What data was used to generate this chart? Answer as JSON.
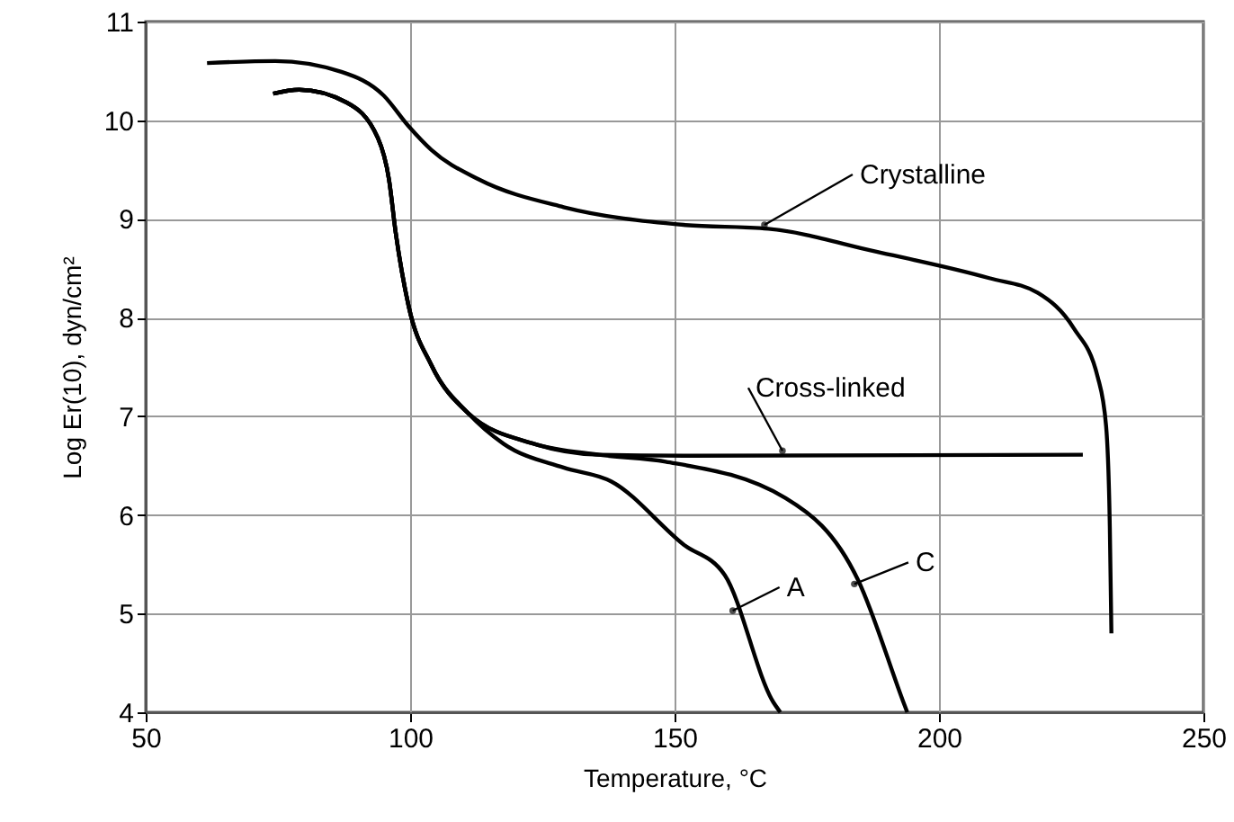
{
  "chart_data": {
    "type": "line",
    "xlabel": "Temperature, °C",
    "ylabel": "Log Er(10), dyn/cm²",
    "xlim": [
      50,
      250
    ],
    "xticks": [
      50,
      100,
      150,
      200,
      250
    ],
    "ylim": [
      4,
      11
    ],
    "yticks": [
      4,
      5,
      6,
      7,
      8,
      9,
      10,
      11
    ],
    "grid": true,
    "marker": "none",
    "line_style": "solid",
    "series": [
      {
        "color": "#000000",
        "x": [
          61.6,
          74.5,
          87,
          95,
          99.7,
          104,
          113,
          129,
          151.7,
          167.7,
          188,
          209.5,
          218.7,
          225.5,
          230,
          231.6,
          232.3,
          232.6
        ],
        "values": [
          10.58,
          10.6,
          10.49,
          10.25,
          9.94,
          9.7,
          9.4,
          9.12,
          8.94,
          8.9,
          8.67,
          8.4,
          8.25,
          7.89,
          7.4,
          6.9,
          5.88,
          4.8
        ]
      },
      {
        "color": "#000000",
        "x": [
          74.1,
          79,
          88,
          93.9,
          96,
          97.3,
          99.7,
          104,
          111,
          123.5,
          135.7,
          151.7,
          227.2
        ],
        "values": [
          10.27,
          10.31,
          10.18,
          9.82,
          9.4,
          8.85,
          8.12,
          7.52,
          7.03,
          6.72,
          6.61,
          6.6,
          6.61
        ]
      },
      {
        "color": "#000000",
        "x": [
          74.1,
          79,
          88,
          93.9,
          96,
          97.3,
          99.7,
          104,
          111,
          117.7,
          129,
          138,
          151.7,
          159.5,
          168.7,
          170
        ],
        "values": [
          10.27,
          10.31,
          10.18,
          9.82,
          9.4,
          8.85,
          8.12,
          7.52,
          7.03,
          6.72,
          6.48,
          6.34,
          5.7,
          5.39,
          4.1,
          4.0
        ]
      },
      {
        "color": "#000000",
        "x": [
          74.1,
          79,
          88,
          93.9,
          96,
          97.3,
          99.7,
          104,
          111,
          123.5,
          135.7,
          148.3,
          171,
          184.7,
          193.5,
          194
        ],
        "values": [
          10.27,
          10.31,
          10.18,
          9.82,
          9.4,
          8.85,
          8.12,
          7.52,
          7.03,
          6.72,
          6.61,
          6.54,
          6.17,
          5.34,
          4.07,
          4.0
        ]
      }
    ],
    "annotations": [
      {
        "text": "Crystalline",
        "x": 167,
        "y": 8.94
      },
      {
        "text": "Cross-linked",
        "x": 170.4,
        "y": 6.65
      },
      {
        "text": "A",
        "x": 161,
        "y": 5.03
      },
      {
        "text": "C",
        "x": 184,
        "y": 5.3
      }
    ]
  }
}
